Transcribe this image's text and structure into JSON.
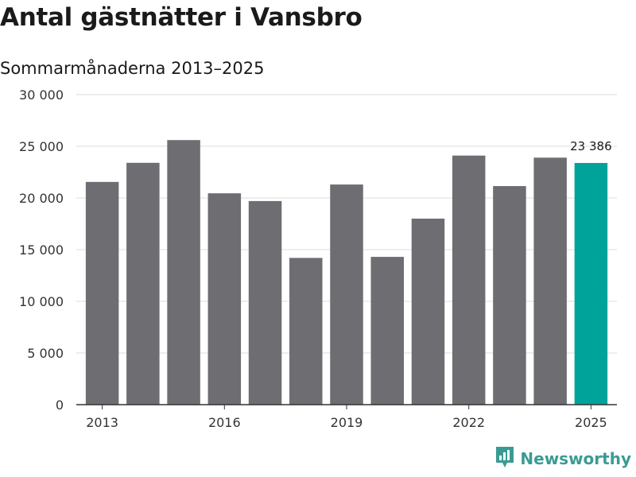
{
  "chart_data": {
    "type": "bar",
    "title": "Antal gästnätter i Vansbro",
    "subtitle": "Sommarmånaderna 2013–2025",
    "xlabel": "",
    "ylabel": "",
    "categories": [
      "2013",
      "2014",
      "2015",
      "2016",
      "2017",
      "2018",
      "2019",
      "2020",
      "2021",
      "2022",
      "2023",
      "2024",
      "2025"
    ],
    "values": [
      21550,
      23400,
      25600,
      20450,
      19700,
      14200,
      21300,
      14300,
      18000,
      24100,
      21150,
      23900,
      23386
    ],
    "ylim": [
      0,
      30000
    ],
    "yticks": [
      0,
      5000,
      10000,
      15000,
      20000,
      25000,
      30000
    ],
    "ytick_labels": [
      "0",
      "5 000",
      "10 000",
      "15 000",
      "20 000",
      "25 000",
      "30 000"
    ],
    "xtick_labels": [
      "2013",
      "2016",
      "2019",
      "2022",
      "2025"
    ],
    "highlight_label": "23 386",
    "highlight_index": 12,
    "grid": true,
    "colors": {
      "bar": "#6e6d72",
      "highlight": "#00a399",
      "grid": "#dddddd",
      "axis": "#333333"
    }
  },
  "brand": {
    "name": "Newsworthy",
    "icon": "newsworthy-logo-icon",
    "color": "#3a9b94"
  }
}
